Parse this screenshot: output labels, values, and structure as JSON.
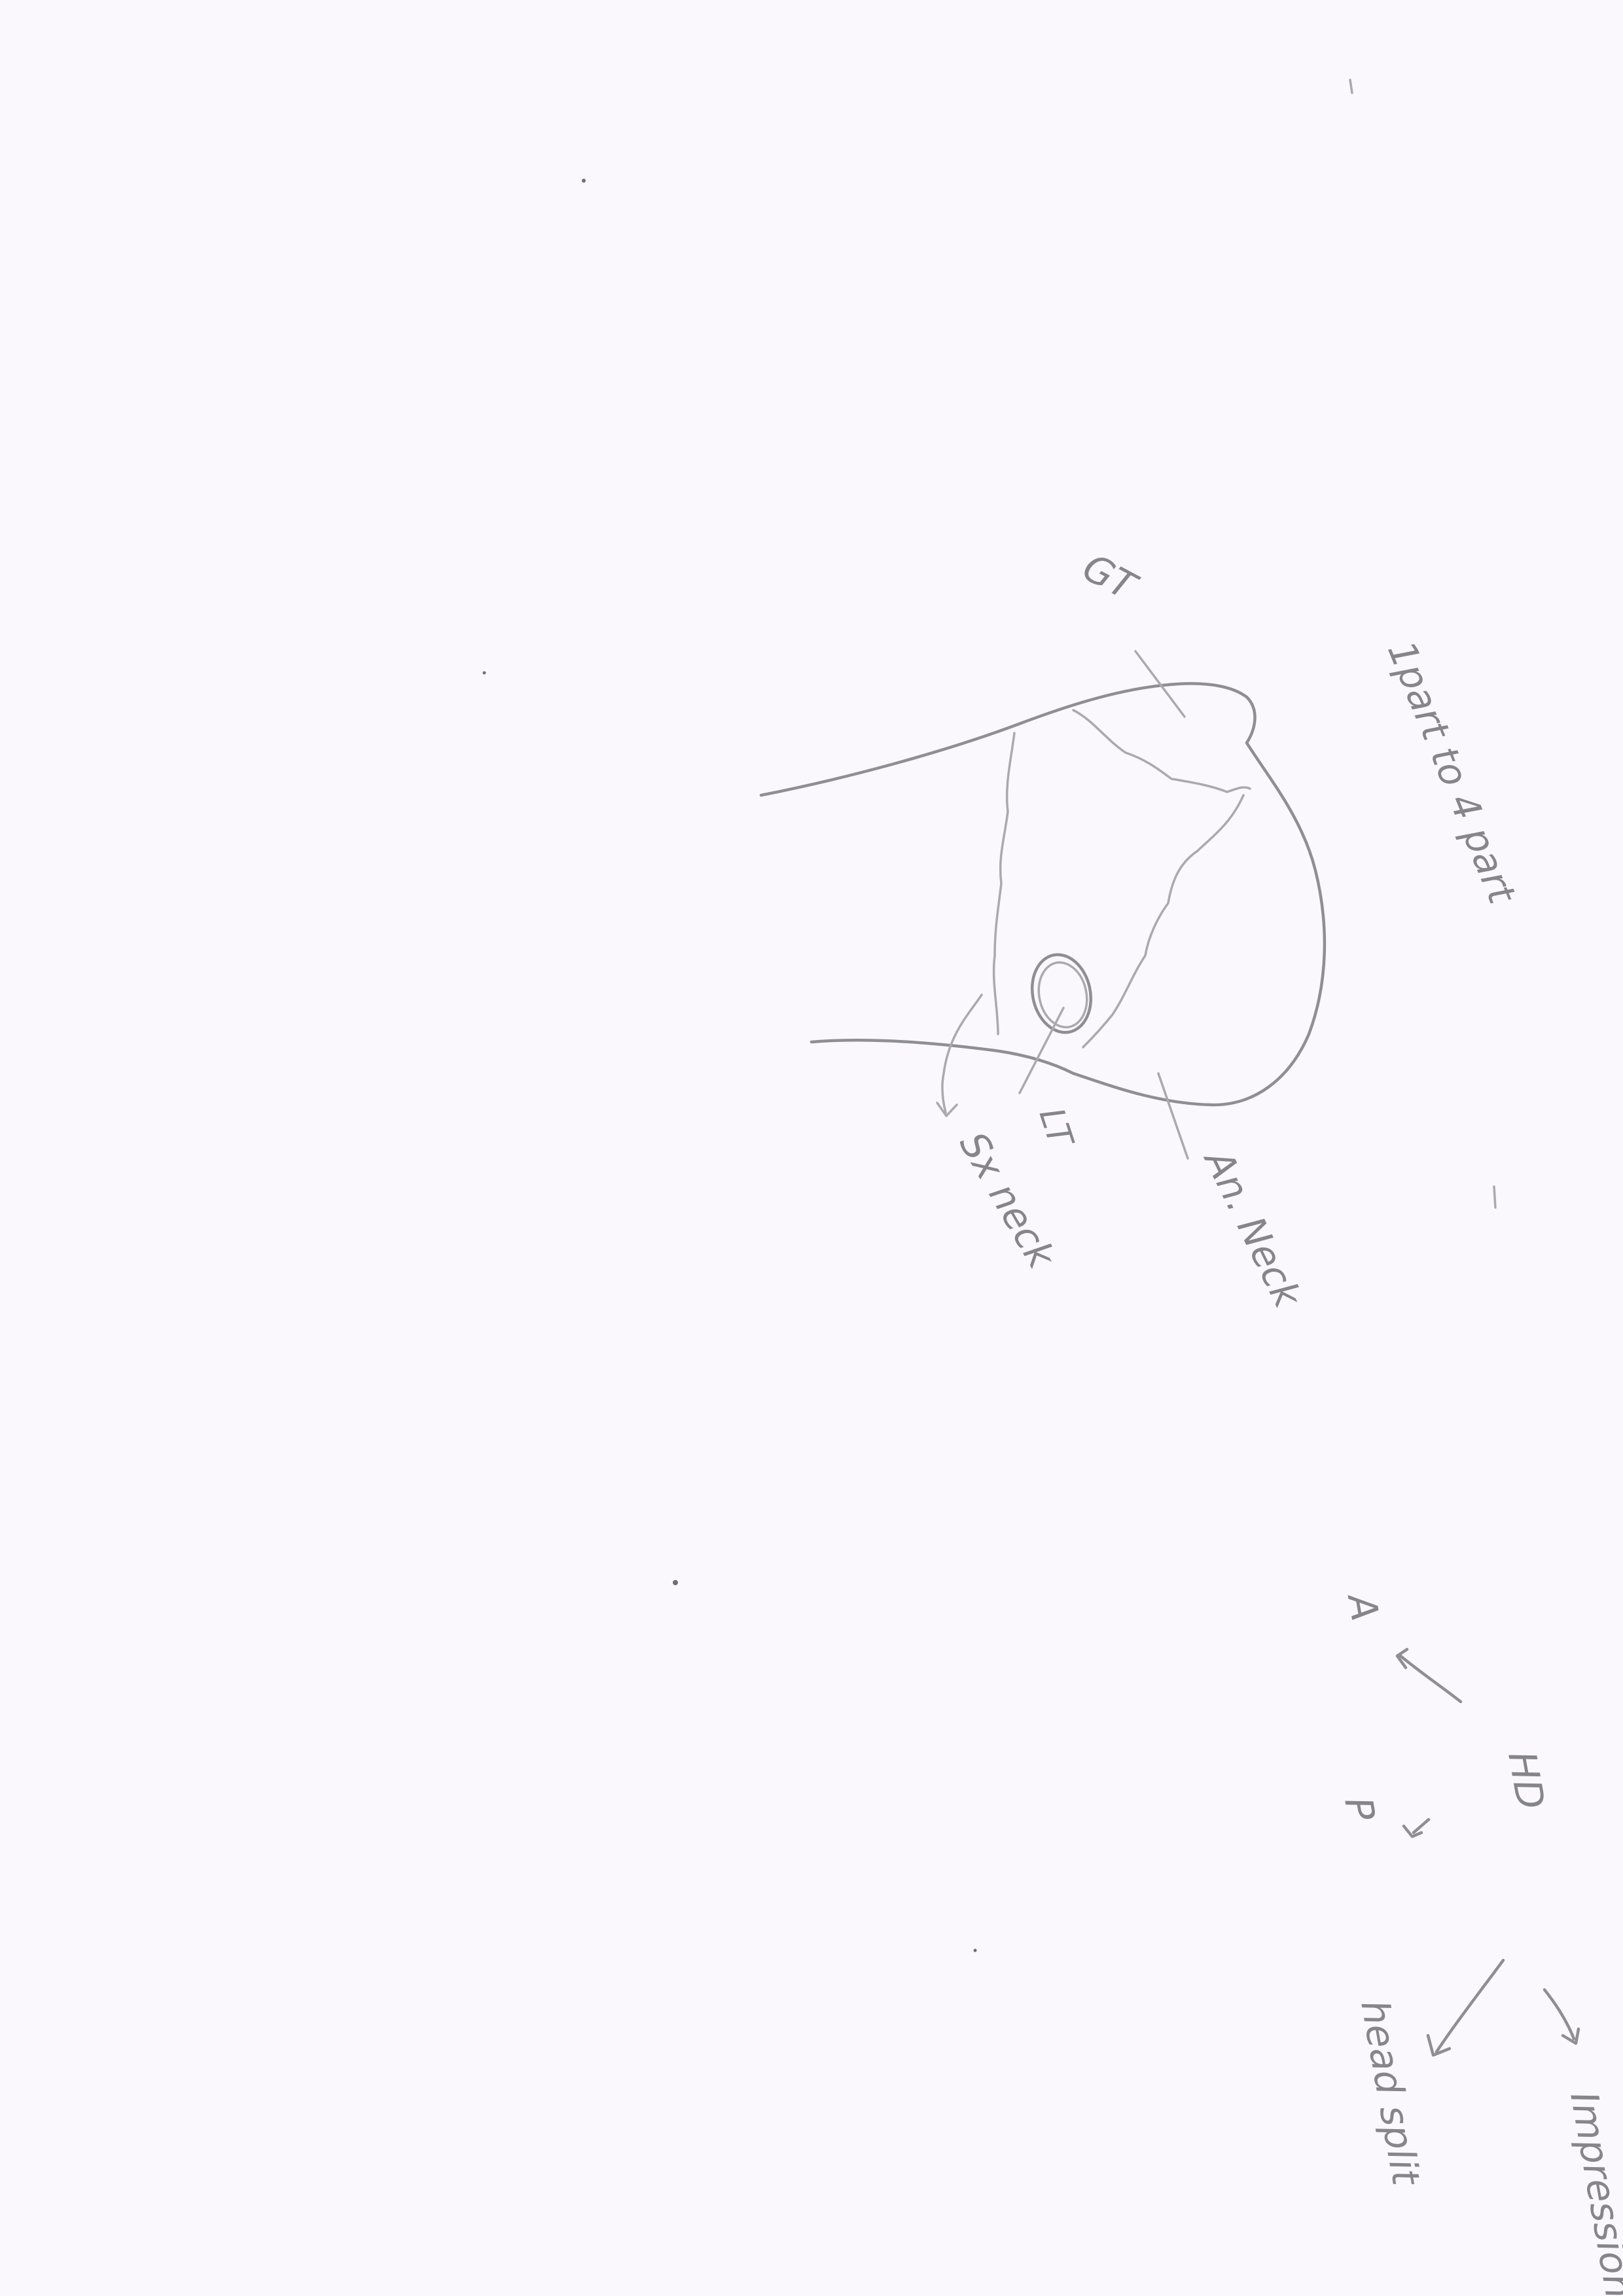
{
  "labels": {
    "gt": "GT",
    "part_count": "1part to 4 part",
    "lt": "LT",
    "an_neck": "An. Neck",
    "sx_neck": "Sx neck",
    "anterior": "A",
    "posterior": "P",
    "hd": "HD",
    "impression": "Impression",
    "head_split": "head split"
  }
}
